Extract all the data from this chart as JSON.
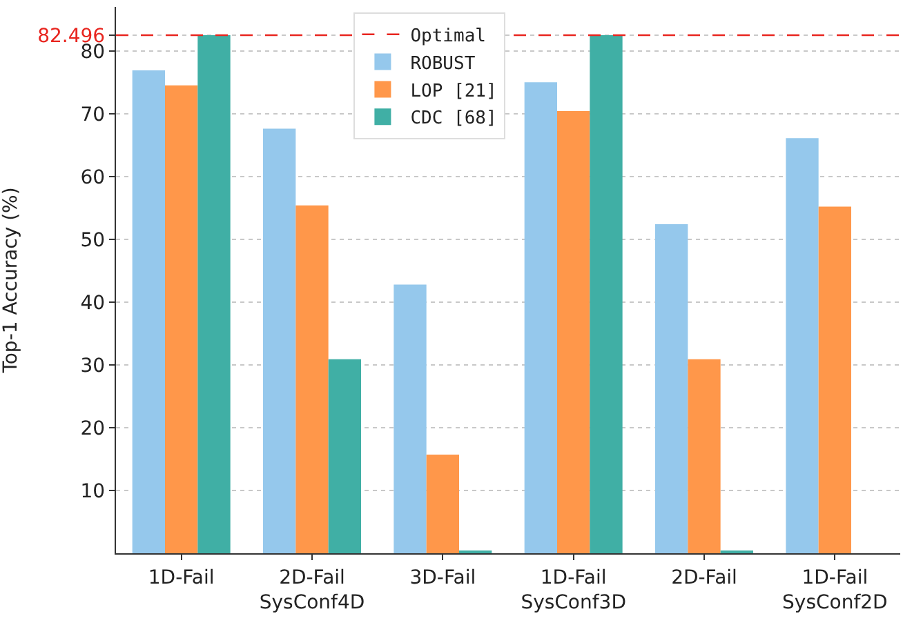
{
  "chart_data": {
    "type": "bar",
    "ylabel": "Top-1 Accuracy (%)",
    "categories": [
      "1D-Fail",
      "2D-Fail\nSysConf4D",
      "3D-Fail",
      "1D-Fail\nSysConf3D",
      "2D-Fail",
      "1D-Fail\nSysConf2D"
    ],
    "series": [
      {
        "name": "ROBUST",
        "color": "#95c8ec",
        "values": [
          76.9,
          67.6,
          42.8,
          75.0,
          52.4,
          66.1
        ]
      },
      {
        "name": "LOP [21]",
        "color": "#ff974a",
        "values": [
          74.5,
          55.4,
          15.7,
          70.4,
          30.9,
          55.2
        ]
      },
      {
        "name": "CDC [68]",
        "color": "#40afa5",
        "values": [
          82.5,
          30.9,
          0.3,
          82.5,
          0.3,
          null
        ]
      }
    ],
    "ylim": [
      0,
      87
    ],
    "yticks": [
      10,
      20,
      30,
      40,
      50,
      60,
      70,
      80,
      82.496
    ],
    "ref_lines": [
      {
        "axis": "y",
        "value": 82.496,
        "label": "Optimal",
        "color": "#e8251f",
        "line_style": "dashed"
      }
    ],
    "grid": "y",
    "legend": "top"
  }
}
